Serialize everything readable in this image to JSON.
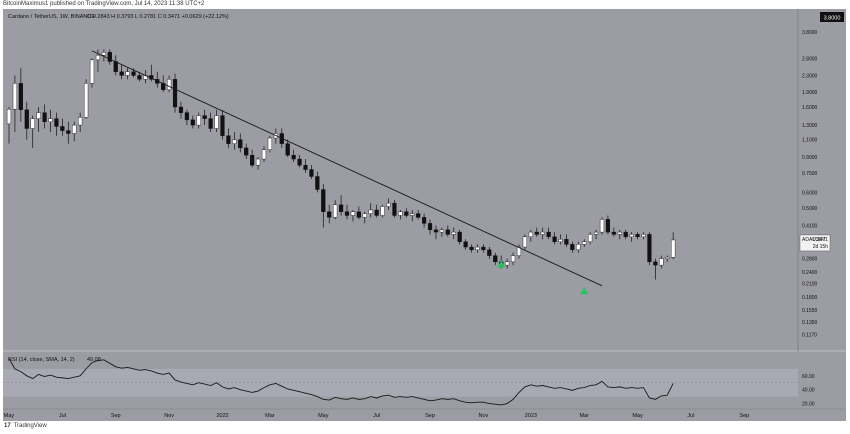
{
  "header": {
    "publish_text": "BitcoinMaximus1 published on TradingView.com, Jul 14, 2023 11:38 UTC+2"
  },
  "legend": {
    "symbol": "Cardano / TetherUS, 1W, BINANCE",
    "ohlc_text": "O 0.2843 H 0.3793 L 0.2781 C 0.3471 +0.0629 (+22.12%)"
  },
  "rsi_legend": {
    "label": "RSI (14, close, SMA, 14, 2)",
    "value": "49.08"
  },
  "price_tag": {
    "symbol": "ADAUSDT",
    "price": "0.3471",
    "countdown": "2d 15h"
  },
  "top_axis_label": "3.8000",
  "footer": {
    "brand": "TradingView",
    "logo": "17"
  },
  "colors": {
    "background": "#9b9ca4",
    "panel_bg": "#9b9ca4",
    "up_candle": "#ffffff",
    "down_candle": "#111111",
    "trendline": "#1a1a1a",
    "arrow": "#22c55e",
    "rsi_line": "#1a1a1a"
  },
  "chart_data": {
    "type": "candlestick",
    "title": "Cardano / TetherUS, 1W, BINANCE",
    "y_scale": "log",
    "ylim": [
      0.105,
      4.3
    ],
    "price_ticks": [
      "3.8000",
      "2.8000",
      "2.3000",
      "1.9000",
      "1.6000",
      "1.3000",
      "1.1000",
      "0.9000",
      "0.7500",
      "0.6000",
      "0.5000",
      "0.4100",
      "0.3300",
      "0.2800",
      "0.2400",
      "0.2100",
      "0.1800",
      "0.1550",
      "0.1350",
      "0.1170"
    ],
    "x_ticks": [
      "May",
      "Jul",
      "Sep",
      "Nov",
      "2022",
      "Mar",
      "May",
      "Jul",
      "Sep",
      "Nov",
      "2023",
      "Mar",
      "May",
      "Jul",
      "Sep"
    ],
    "x_tick_index": [
      0,
      9,
      18,
      27,
      36,
      44,
      53,
      62,
      71,
      80,
      88,
      97,
      106,
      115,
      124
    ],
    "candles": [
      [
        1.32,
        1.6,
        1.05,
        1.56
      ],
      [
        1.56,
        2.3,
        1.2,
        2.1
      ],
      [
        2.1,
        2.5,
        1.35,
        1.55
      ],
      [
        1.55,
        1.7,
        1.1,
        1.25
      ],
      [
        1.25,
        1.45,
        1.0,
        1.4
      ],
      [
        1.4,
        1.6,
        1.2,
        1.5
      ],
      [
        1.5,
        1.65,
        1.25,
        1.35
      ],
      [
        1.35,
        1.55,
        1.2,
        1.4
      ],
      [
        1.4,
        1.5,
        1.15,
        1.28
      ],
      [
        1.28,
        1.4,
        1.15,
        1.22
      ],
      [
        1.22,
        1.35,
        1.05,
        1.18
      ],
      [
        1.18,
        1.35,
        1.08,
        1.3
      ],
      [
        1.3,
        1.5,
        1.2,
        1.42
      ],
      [
        1.42,
        2.2,
        1.4,
        2.1
      ],
      [
        2.1,
        2.8,
        2.0,
        2.75
      ],
      [
        2.75,
        3.1,
        2.4,
        2.9
      ],
      [
        2.9,
        3.1,
        2.7,
        3.0
      ],
      [
        3.0,
        3.1,
        2.6,
        2.7
      ],
      [
        2.7,
        2.9,
        2.3,
        2.4
      ],
      [
        2.4,
        2.6,
        2.2,
        2.3
      ],
      [
        2.3,
        2.5,
        2.2,
        2.4
      ],
      [
        2.4,
        2.5,
        2.25,
        2.3
      ],
      [
        2.3,
        2.4,
        2.15,
        2.2
      ],
      [
        2.2,
        2.45,
        2.1,
        2.3
      ],
      [
        2.3,
        2.6,
        2.15,
        2.2
      ],
      [
        2.2,
        2.4,
        2.0,
        2.1
      ],
      [
        2.1,
        2.3,
        1.9,
        1.95
      ],
      [
        1.95,
        2.3,
        1.9,
        2.2
      ],
      [
        2.2,
        2.35,
        1.5,
        1.6
      ],
      [
        1.6,
        1.7,
        1.4,
        1.5
      ],
      [
        1.5,
        1.55,
        1.3,
        1.38
      ],
      [
        1.38,
        1.45,
        1.25,
        1.3
      ],
      [
        1.3,
        1.5,
        1.25,
        1.45
      ],
      [
        1.45,
        1.55,
        1.3,
        1.4
      ],
      [
        1.4,
        1.5,
        1.2,
        1.25
      ],
      [
        1.25,
        1.55,
        1.2,
        1.45
      ],
      [
        1.45,
        1.55,
        1.1,
        1.15
      ],
      [
        1.15,
        1.25,
        1.0,
        1.05
      ],
      [
        1.05,
        1.2,
        0.98,
        1.1
      ],
      [
        1.1,
        1.18,
        0.95,
        1.0
      ],
      [
        1.0,
        1.05,
        0.88,
        0.92
      ],
      [
        0.92,
        0.98,
        0.8,
        0.82
      ],
      [
        0.82,
        0.9,
        0.78,
        0.88
      ],
      [
        0.88,
        1.02,
        0.85,
        0.98
      ],
      [
        0.98,
        1.15,
        0.95,
        1.12
      ],
      [
        1.12,
        1.25,
        1.05,
        1.18
      ],
      [
        1.18,
        1.25,
        1.0,
        1.05
      ],
      [
        1.05,
        1.1,
        0.9,
        0.92
      ],
      [
        0.92,
        0.98,
        0.85,
        0.88
      ],
      [
        0.88,
        0.92,
        0.8,
        0.82
      ],
      [
        0.82,
        0.88,
        0.75,
        0.78
      ],
      [
        0.78,
        0.82,
        0.7,
        0.72
      ],
      [
        0.72,
        0.76,
        0.6,
        0.62
      ],
      [
        0.62,
        0.66,
        0.4,
        0.48
      ],
      [
        0.48,
        0.52,
        0.42,
        0.45
      ],
      [
        0.45,
        0.55,
        0.44,
        0.52
      ],
      [
        0.52,
        0.58,
        0.46,
        0.48
      ],
      [
        0.48,
        0.52,
        0.44,
        0.46
      ],
      [
        0.46,
        0.49,
        0.43,
        0.48
      ],
      [
        0.48,
        0.51,
        0.44,
        0.45
      ],
      [
        0.45,
        0.48,
        0.42,
        0.47
      ],
      [
        0.47,
        0.53,
        0.45,
        0.49
      ],
      [
        0.49,
        0.52,
        0.45,
        0.46
      ],
      [
        0.46,
        0.52,
        0.45,
        0.51
      ],
      [
        0.51,
        0.56,
        0.49,
        0.53
      ],
      [
        0.53,
        0.55,
        0.45,
        0.46
      ],
      [
        0.46,
        0.49,
        0.44,
        0.48
      ],
      [
        0.48,
        0.5,
        0.45,
        0.46
      ],
      [
        0.46,
        0.49,
        0.43,
        0.47
      ],
      [
        0.47,
        0.49,
        0.44,
        0.45
      ],
      [
        0.45,
        0.47,
        0.4,
        0.42
      ],
      [
        0.42,
        0.44,
        0.37,
        0.39
      ],
      [
        0.39,
        0.41,
        0.35,
        0.38
      ],
      [
        0.38,
        0.4,
        0.36,
        0.39
      ],
      [
        0.39,
        0.41,
        0.36,
        0.37
      ],
      [
        0.37,
        0.4,
        0.35,
        0.38
      ],
      [
        0.38,
        0.39,
        0.33,
        0.34
      ],
      [
        0.34,
        0.35,
        0.31,
        0.32
      ],
      [
        0.32,
        0.33,
        0.3,
        0.31
      ],
      [
        0.31,
        0.33,
        0.3,
        0.32
      ],
      [
        0.32,
        0.33,
        0.3,
        0.31
      ],
      [
        0.31,
        0.32,
        0.28,
        0.29
      ],
      [
        0.29,
        0.3,
        0.26,
        0.27
      ],
      [
        0.27,
        0.29,
        0.25,
        0.26
      ],
      [
        0.26,
        0.28,
        0.25,
        0.27
      ],
      [
        0.27,
        0.3,
        0.26,
        0.29
      ],
      [
        0.29,
        0.33,
        0.28,
        0.32
      ],
      [
        0.32,
        0.37,
        0.31,
        0.36
      ],
      [
        0.36,
        0.39,
        0.34,
        0.38
      ],
      [
        0.38,
        0.4,
        0.36,
        0.37
      ],
      [
        0.37,
        0.4,
        0.35,
        0.38
      ],
      [
        0.38,
        0.4,
        0.35,
        0.36
      ],
      [
        0.36,
        0.38,
        0.33,
        0.34
      ],
      [
        0.34,
        0.37,
        0.33,
        0.35
      ],
      [
        0.35,
        0.37,
        0.32,
        0.33
      ],
      [
        0.33,
        0.34,
        0.3,
        0.31
      ],
      [
        0.31,
        0.34,
        0.3,
        0.33
      ],
      [
        0.33,
        0.35,
        0.32,
        0.34
      ],
      [
        0.34,
        0.38,
        0.33,
        0.37
      ],
      [
        0.37,
        0.39,
        0.35,
        0.38
      ],
      [
        0.38,
        0.45,
        0.37,
        0.44
      ],
      [
        0.44,
        0.46,
        0.37,
        0.38
      ],
      [
        0.38,
        0.4,
        0.36,
        0.37
      ],
      [
        0.37,
        0.39,
        0.35,
        0.38
      ],
      [
        0.38,
        0.39,
        0.35,
        0.36
      ],
      [
        0.36,
        0.38,
        0.34,
        0.37
      ],
      [
        0.37,
        0.38,
        0.35,
        0.36
      ],
      [
        0.36,
        0.38,
        0.35,
        0.37
      ],
      [
        0.37,
        0.38,
        0.26,
        0.27
      ],
      [
        0.27,
        0.28,
        0.22,
        0.26
      ],
      [
        0.26,
        0.29,
        0.25,
        0.28
      ],
      [
        0.28,
        0.29,
        0.27,
        0.285
      ],
      [
        0.2843,
        0.3793,
        0.2781,
        0.3471
      ]
    ],
    "trendline": {
      "from_index": 14,
      "from_price": 3.05,
      "to_index": 100,
      "to_price": 0.205
    },
    "arrows": [
      {
        "index": 83,
        "price": 0.265
      },
      {
        "index": 97,
        "price": 0.195
      }
    ],
    "rsi": {
      "label": "RSI (14, close, SMA, 14, 2)",
      "ylim": [
        15,
        90
      ],
      "ticks": [
        60,
        40,
        20
      ],
      "values": [
        85,
        70,
        66,
        60,
        56,
        62,
        59,
        61,
        58,
        57,
        56,
        58,
        60,
        70,
        79,
        82,
        83,
        78,
        73,
        71,
        72,
        70,
        68,
        69,
        67,
        64,
        62,
        64,
        54,
        51,
        49,
        47,
        50,
        48,
        46,
        50,
        44,
        41,
        43,
        40,
        38,
        36,
        38,
        43,
        47,
        49,
        45,
        41,
        39,
        37,
        35,
        33,
        30,
        26,
        25,
        29,
        27,
        26,
        28,
        26,
        27,
        30,
        28,
        31,
        32,
        29,
        30,
        29,
        30,
        28,
        26,
        24,
        25,
        27,
        26,
        27,
        24,
        22,
        21,
        22,
        22,
        20,
        19,
        18,
        20,
        26,
        36,
        44,
        47,
        45,
        46,
        44,
        42,
        43,
        41,
        39,
        42,
        43,
        46,
        47,
        52,
        44,
        43,
        44,
        42,
        43,
        42,
        43,
        28,
        26,
        31,
        32,
        49
      ]
    }
  }
}
